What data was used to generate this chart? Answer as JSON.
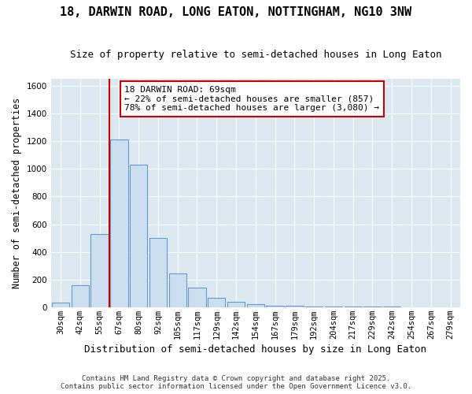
{
  "title": "18, DARWIN ROAD, LONG EATON, NOTTINGHAM, NG10 3NW",
  "subtitle": "Size of property relative to semi-detached houses in Long Eaton",
  "xlabel": "Distribution of semi-detached houses by size in Long Eaton",
  "ylabel": "Number of semi-detached properties",
  "bar_color": "#ccdff0",
  "bar_edge_color": "#6699cc",
  "background_color": "#dce8f0",
  "fig_background": "#ffffff",
  "categories": [
    "30sqm",
    "42sqm",
    "55sqm",
    "67sqm",
    "80sqm",
    "92sqm",
    "105sqm",
    "117sqm",
    "129sqm",
    "142sqm",
    "154sqm",
    "167sqm",
    "179sqm",
    "192sqm",
    "204sqm",
    "217sqm",
    "229sqm",
    "242sqm",
    "254sqm",
    "267sqm",
    "279sqm"
  ],
  "values": [
    35,
    160,
    530,
    1210,
    1030,
    500,
    245,
    140,
    65,
    38,
    23,
    12,
    8,
    5,
    4,
    3,
    2,
    2,
    1,
    0,
    0
  ],
  "vline_x_index": 3,
  "annotation_title": "18 DARWIN ROAD: 69sqm",
  "annotation_line1": "← 22% of semi-detached houses are smaller (857)",
  "annotation_line2": "78% of semi-detached houses are larger (3,080) →",
  "vline_color": "#cc0000",
  "annotation_box_edgecolor": "#cc0000",
  "ylim": [
    0,
    1650
  ],
  "yticks": [
    0,
    200,
    400,
    600,
    800,
    1000,
    1200,
    1400,
    1600
  ],
  "grid_color": "#ffffff",
  "footnote1": "Contains HM Land Registry data © Crown copyright and database right 2025.",
  "footnote2": "Contains public sector information licensed under the Open Government Licence v3.0.",
  "title_fontsize": 11,
  "subtitle_fontsize": 9,
  "ylabel_fontsize": 8.5,
  "xlabel_fontsize": 9,
  "tick_fontsize": 7.5,
  "annotation_fontsize": 8,
  "footnote_fontsize": 6.5
}
